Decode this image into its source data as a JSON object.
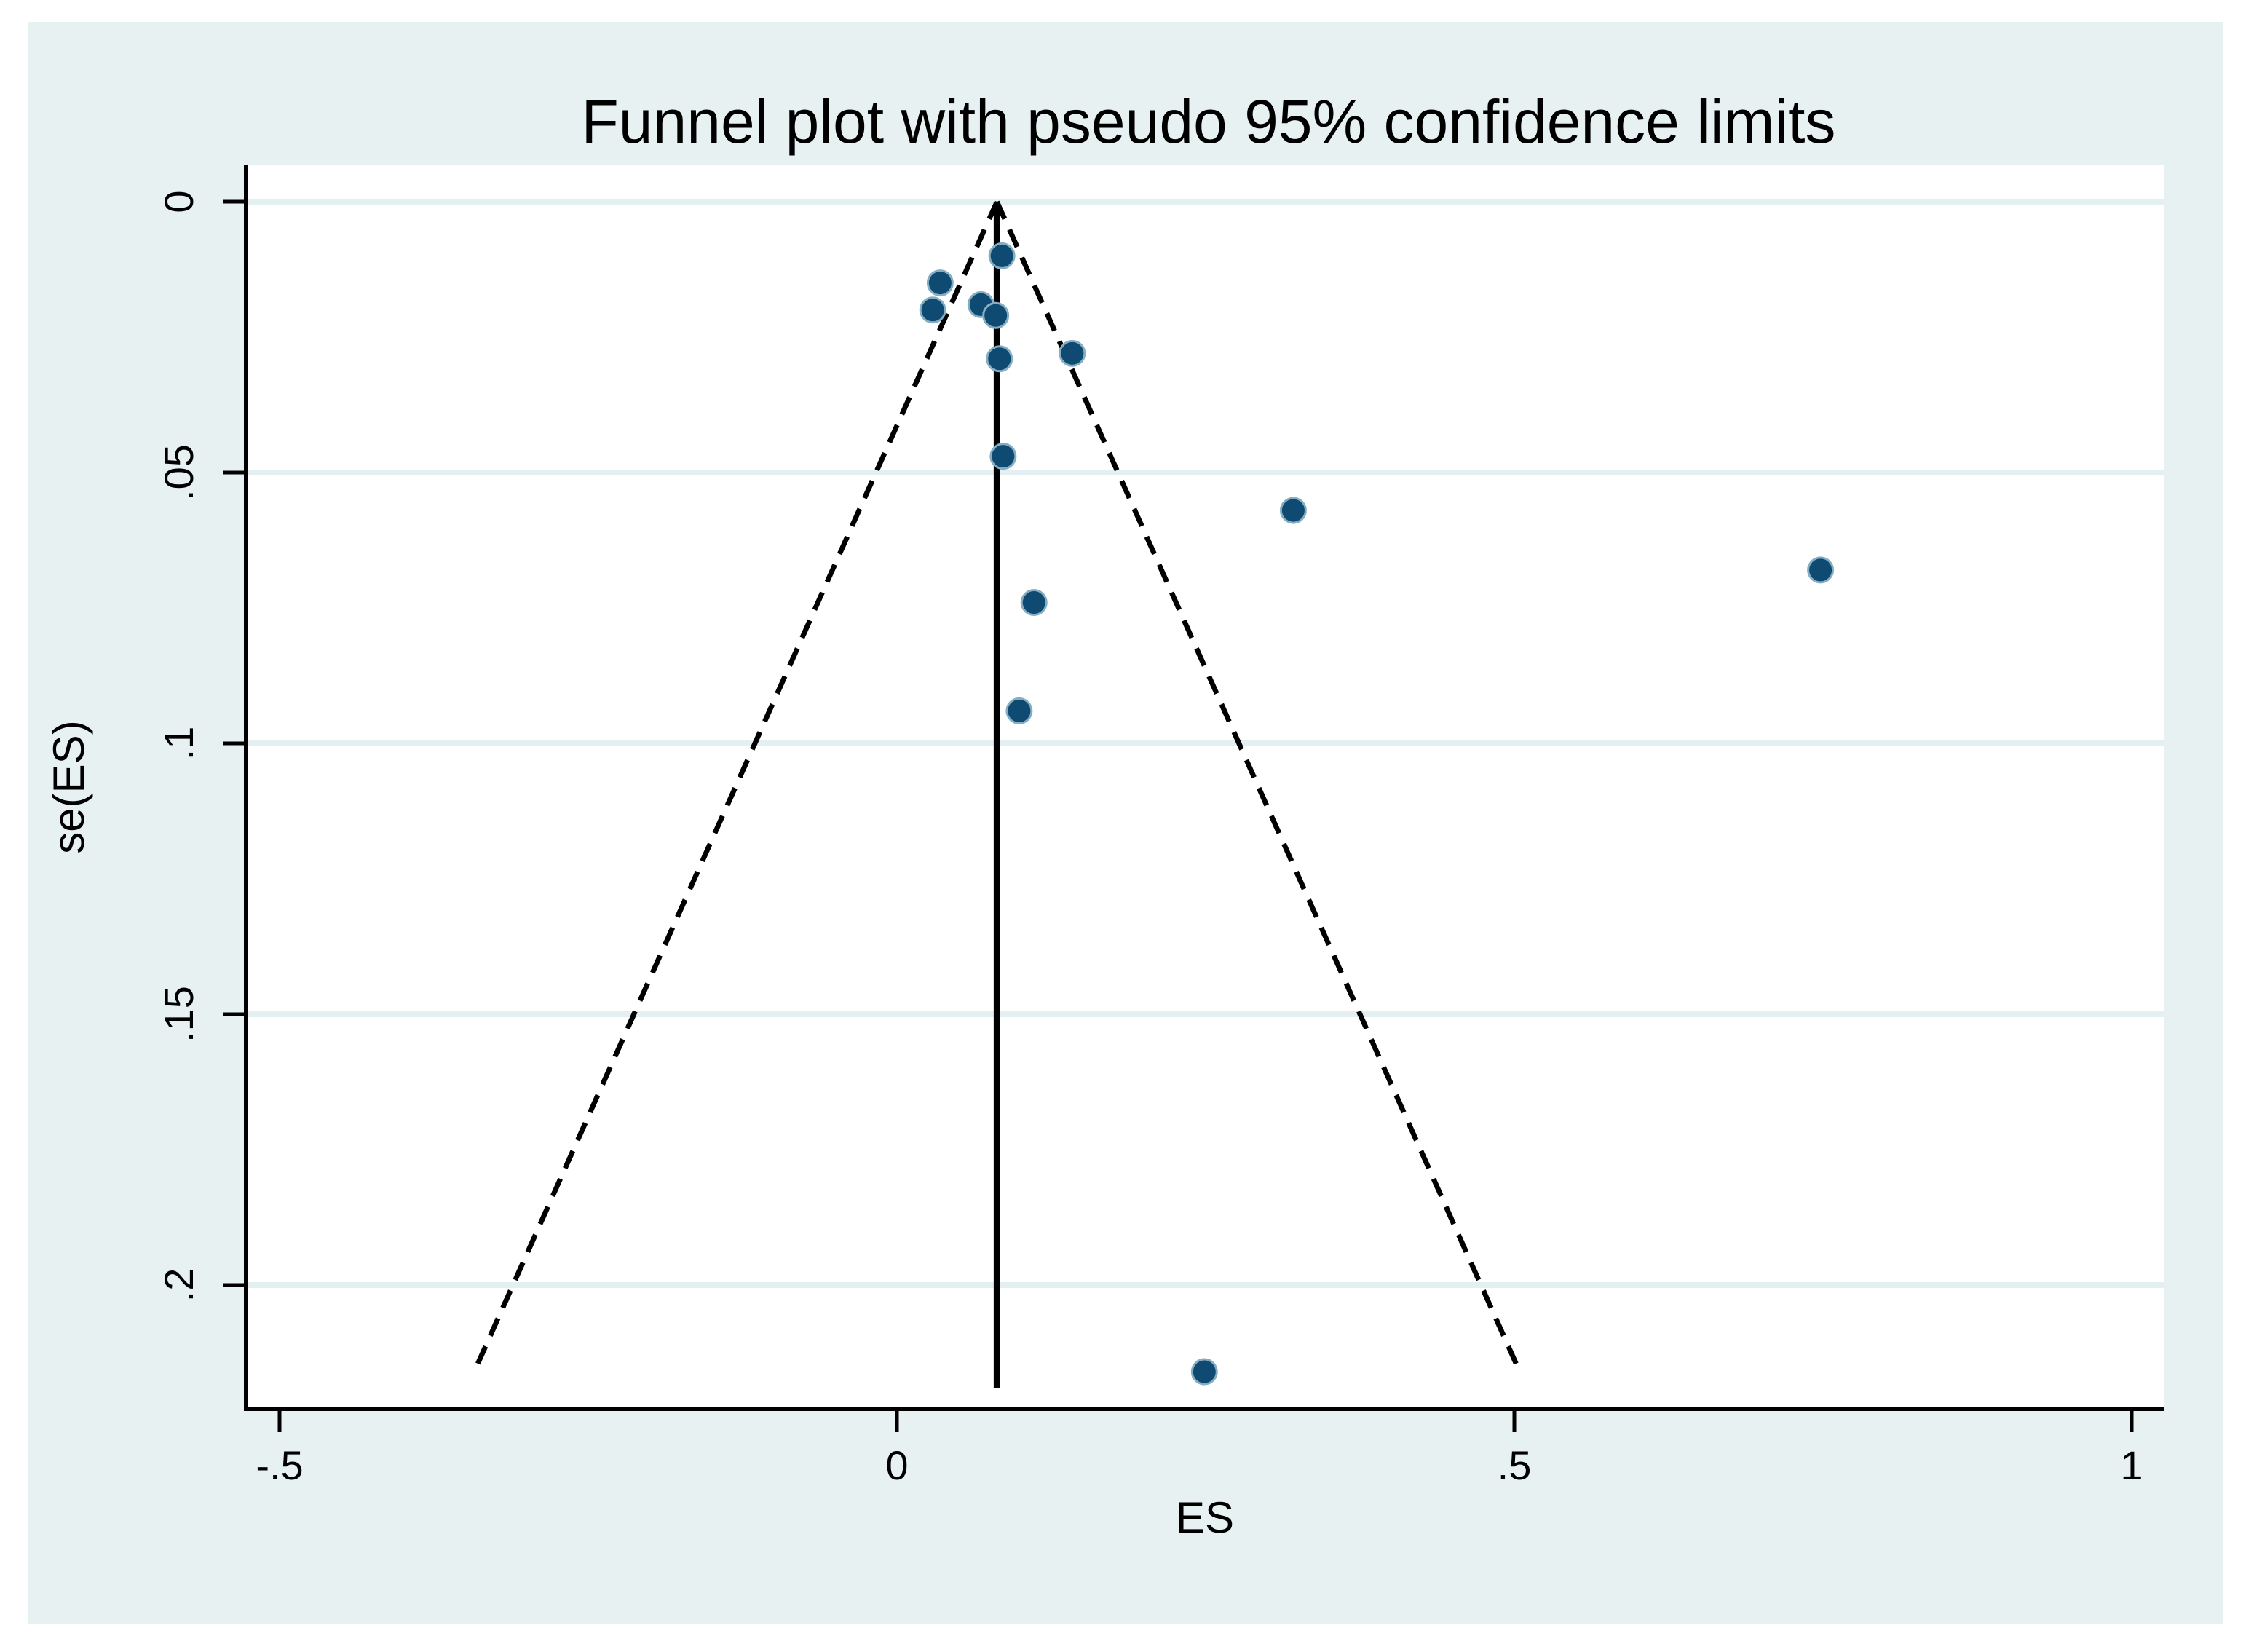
{
  "title": "Funnel plot with pseudo 95% confidence limits",
  "colors": {
    "canvas_background": "#e8f1f2",
    "plot_background": "#ffffff",
    "gridline": "#e4eff2",
    "marker": "#0e4a71",
    "marker_halo": "#86aec3",
    "line": "#000000"
  },
  "chart_data": {
    "type": "scatter",
    "title": "Funnel plot with pseudo 95% confidence limits",
    "xlabel": "ES",
    "ylabel": "se(ES)",
    "xlim": [
      -0.527,
      1.027
    ],
    "ylim": [
      0,
      0.223
    ],
    "y_axis_inverted": true,
    "grid": "horizontal",
    "legend": "none",
    "x_ticks": [
      {
        "value": -0.5,
        "label": "-.5"
      },
      {
        "value": 0,
        "label": "0"
      },
      {
        "value": 0.5,
        "label": ".5"
      },
      {
        "value": 1,
        "label": "1"
      }
    ],
    "y_ticks": [
      {
        "value": 0,
        "label": "0"
      },
      {
        "value": 0.05,
        "label": ".05"
      },
      {
        "value": 0.1,
        "label": ".1"
      },
      {
        "value": 0.15,
        "label": ".15"
      },
      {
        "value": 0.2,
        "label": ".2"
      }
    ],
    "funnel": {
      "pooled_es": 0.081,
      "z": 1.96,
      "dashed_limit_se_end": 0.215,
      "center_line_se_end": 0.219,
      "apex_se": 0
    },
    "points": [
      {
        "es": 0.085,
        "se": 0.01
      },
      {
        "es": 0.035,
        "se": 0.015
      },
      {
        "es": 0.029,
        "se": 0.02
      },
      {
        "es": 0.068,
        "se": 0.019
      },
      {
        "es": 0.08,
        "se": 0.021
      },
      {
        "es": 0.083,
        "se": 0.029
      },
      {
        "es": 0.142,
        "se": 0.028
      },
      {
        "es": 0.086,
        "se": 0.047
      },
      {
        "es": 0.321,
        "se": 0.057
      },
      {
        "es": 0.748,
        "se": 0.068
      },
      {
        "es": 0.111,
        "se": 0.074
      },
      {
        "es": 0.099,
        "se": 0.094
      },
      {
        "es": 0.249,
        "se": 0.216
      }
    ]
  }
}
